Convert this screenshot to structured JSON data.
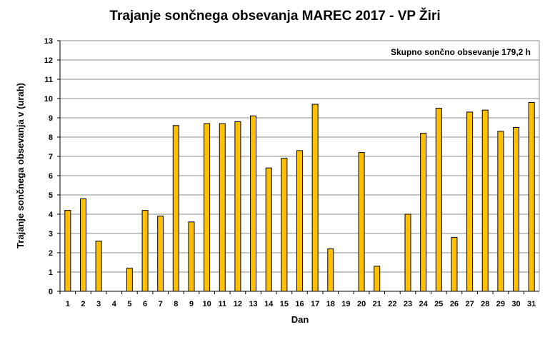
{
  "chart_data": {
    "type": "bar",
    "title": "Trajanje  sončnega obsevanja  MAREC 2017 - VP Žiri",
    "xlabel": "Dan",
    "ylabel": "Trajanje  sončnega obsevanja  v (urah)",
    "ylim": [
      0,
      13
    ],
    "yticks": [
      "0",
      "1",
      "2",
      "3",
      "4",
      "5",
      "6",
      "7",
      "8",
      "9",
      "10",
      "11",
      "12",
      "13"
    ],
    "categories": [
      "1",
      "2",
      "3",
      "4",
      "5",
      "6",
      "7",
      "8",
      "9",
      "10",
      "11",
      "12",
      "13",
      "14",
      "15",
      "16",
      "17",
      "18",
      "19",
      "20",
      "21",
      "22",
      "23",
      "24",
      "25",
      "26",
      "27",
      "28",
      "29",
      "30",
      "31"
    ],
    "values": [
      4.2,
      4.8,
      2.6,
      0,
      1.2,
      4.2,
      3.9,
      8.6,
      3.6,
      8.7,
      8.7,
      8.8,
      9.1,
      6.4,
      6.9,
      7.3,
      9.7,
      2.2,
      0,
      7.2,
      1.3,
      0,
      4.0,
      8.2,
      9.5,
      2.8,
      9.3,
      9.4,
      8.3,
      8.5,
      9.8
    ],
    "annotation": "Skupno sončno obsevanje  179,2 h",
    "grid": true,
    "bar_color": "#FFC000",
    "bar_edge_color": "#000000",
    "plot_background": "#ffffff",
    "grid_color": "#8c8c8c"
  }
}
